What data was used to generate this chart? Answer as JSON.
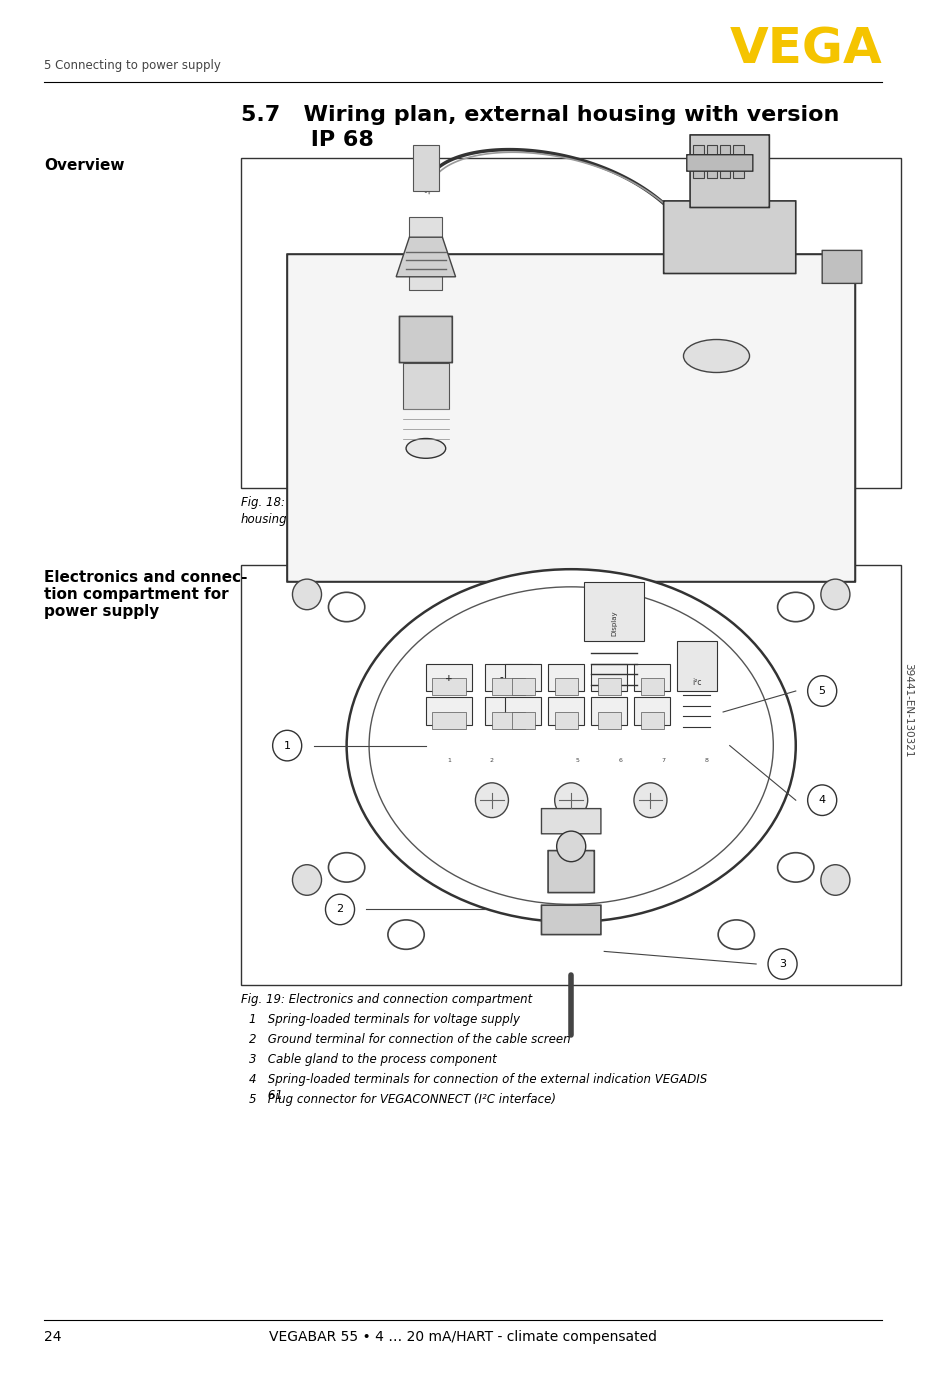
{
  "page_bg": "#ffffff",
  "header_line_color": "#000000",
  "footer_line_color": "#000000",
  "header_text": "5 Connecting to power supply",
  "header_text_color": "#444444",
  "vega_logo_text": "VEGA",
  "vega_logo_color": "#f5c400",
  "section_title_line1": "5.7   Wiring plan, external housing with version",
  "section_title_line2": "         IP 68",
  "section_title_fontsize": 16,
  "overview_label": "Overview",
  "overview_label_fontsize": 11,
  "fig1_caption": "Fig. 18: VEGABAR 55 in IP 68 version 25 bar and axial cable outlet, external\nhousing",
  "fig1_caption_fontsize": 8.5,
  "electronics_label_line1": "Electronics and connec-",
  "electronics_label_line2": "tion compartment for",
  "electronics_label_line3": "power supply",
  "electronics_label_fontsize": 11,
  "fig2_caption": "Fig. 19: Electronics and connection compartment",
  "fig2_caption_fontsize": 8.5,
  "numbered_items": [
    "1   Spring-loaded terminals for voltage supply",
    "2   Ground terminal for connection of the cable screen",
    "3   Cable gland to the process component",
    "4   Spring-loaded terminals for connection of the external indication VEGADIS\n     61",
    "5   Plug connector for VEGACONNECT (I²C interface)"
  ],
  "numbered_items_fontsize": 8.5,
  "footer_page_num": "24",
  "footer_text": "VEGABAR 55 • 4 … 20 mA/HART - climate compensated",
  "footer_fontsize": 10,
  "sidebar_text": "39441-EN-130321",
  "sidebar_color": "#444444",
  "sidebar_fontsize": 7.5
}
